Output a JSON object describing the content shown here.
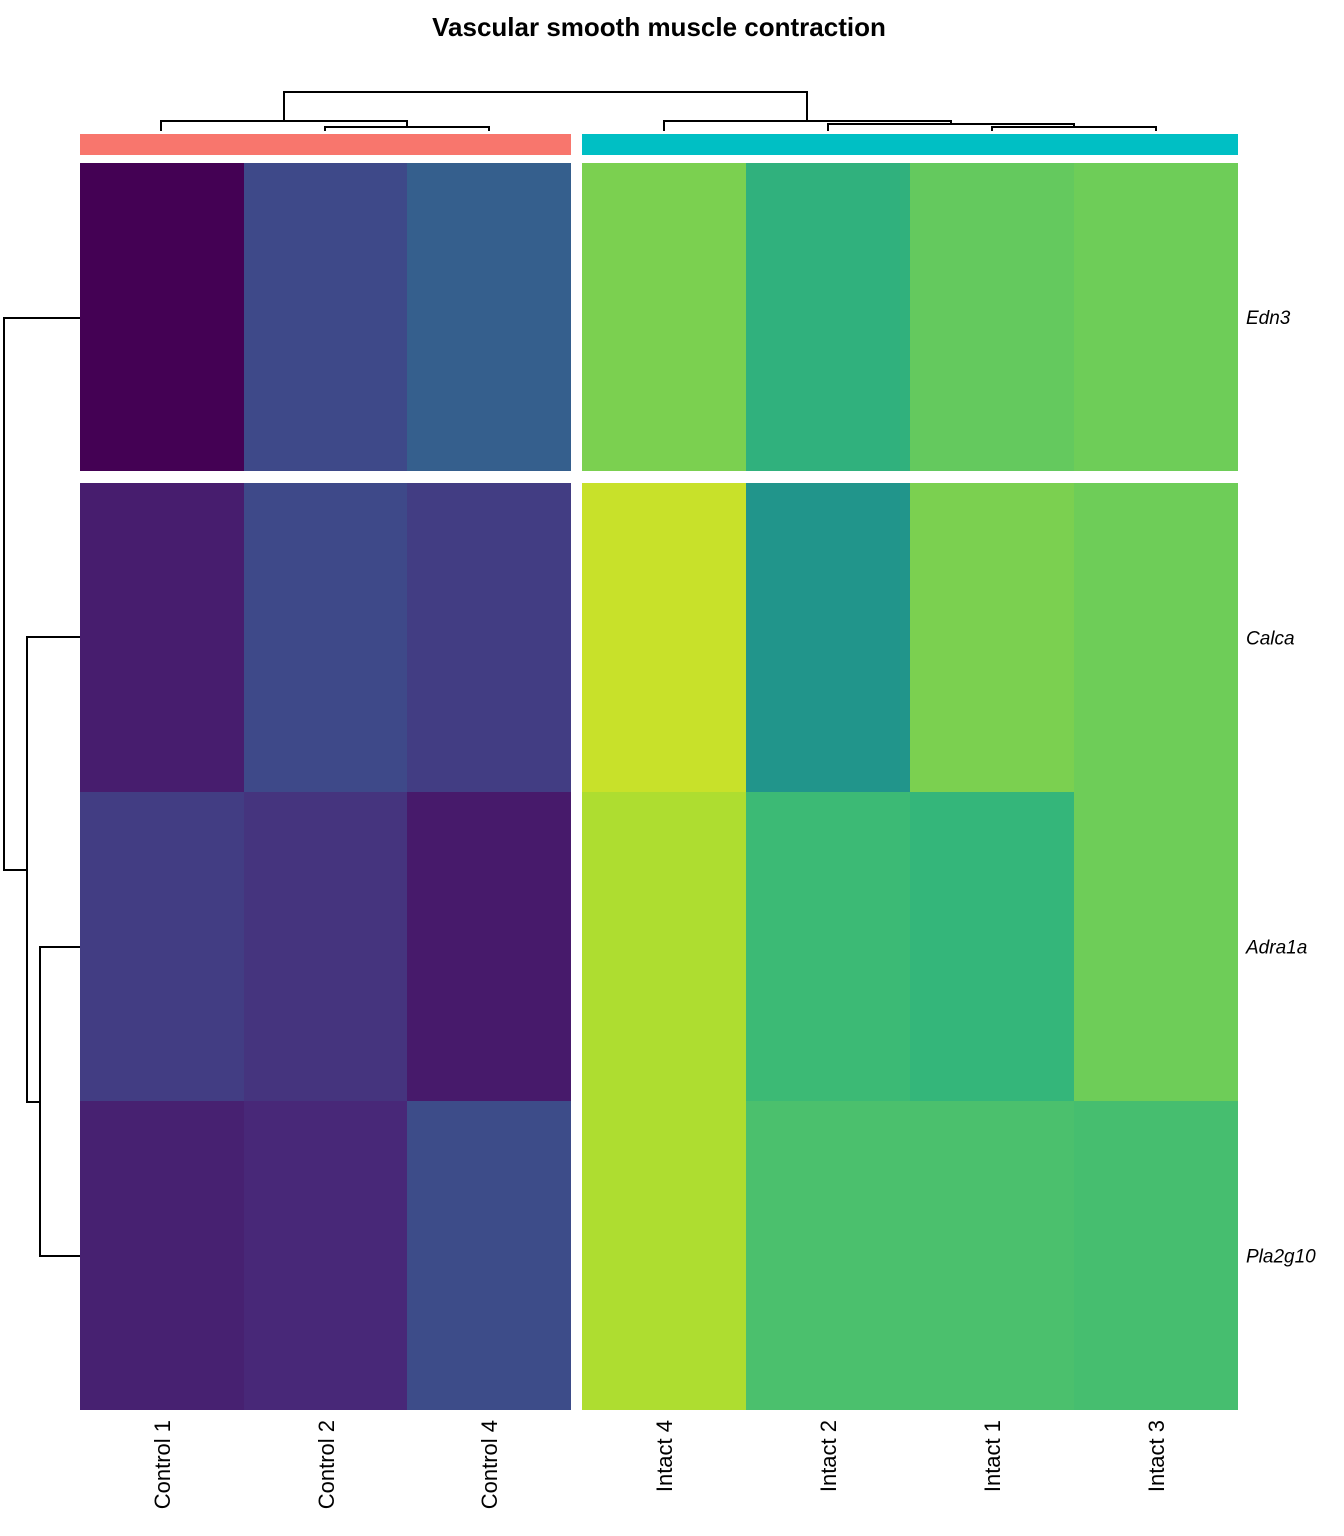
{
  "chart_data": {
    "type": "heatmap",
    "title": "Vascular smooth muscle contraction",
    "columns": [
      "Control 1",
      "Control 2",
      "Control 4",
      "Intact 4",
      "Intact 2",
      "Intact 1",
      "Intact 3"
    ],
    "column_groups": [
      {
        "name": "Control",
        "color": "#F8766D",
        "columns": [
          "Control 1",
          "Control 2",
          "Control 4"
        ]
      },
      {
        "name": "Intact",
        "color": "#00BFC4",
        "columns": [
          "Intact 4",
          "Intact 2",
          "Intact 1",
          "Intact 3"
        ]
      }
    ],
    "rows": [
      "Edn3",
      "Calca",
      "Adra1a",
      "Pla2g10"
    ],
    "row_groups": [
      [
        "Edn3"
      ],
      [
        "Calca",
        "Adra1a",
        "Pla2g10"
      ]
    ],
    "colormap": "viridis",
    "values": [
      [
        0.0,
        0.22,
        0.3,
        0.8,
        0.64,
        0.76,
        0.78
      ],
      [
        0.08,
        0.22,
        0.18,
        0.92,
        0.52,
        0.8,
        0.78
      ],
      [
        0.18,
        0.15,
        0.07,
        0.88,
        0.68,
        0.66,
        0.78
      ],
      [
        0.09,
        0.11,
        0.23,
        0.88,
        0.71,
        0.71,
        0.7
      ]
    ],
    "column_dendrogram": true,
    "row_dendrogram": true,
    "legend": "none"
  }
}
